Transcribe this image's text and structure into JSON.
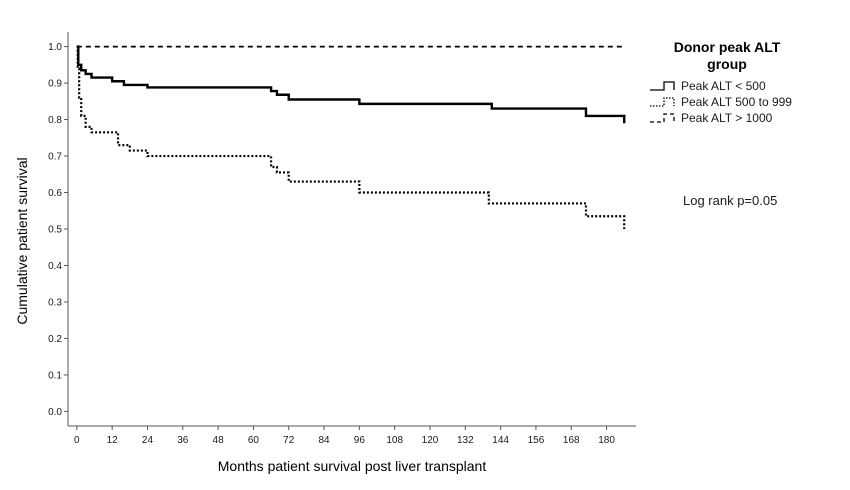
{
  "chart_data": {
    "type": "line",
    "title": "",
    "xlabel": "Months patient survival post liver transplant",
    "ylabel": "Cumulative patient survival",
    "xlim": [
      -3,
      190
    ],
    "ylim": [
      -0.04,
      1.04
    ],
    "x_ticks": [
      0,
      12,
      24,
      36,
      48,
      60,
      72,
      84,
      96,
      108,
      120,
      132,
      144,
      156,
      168,
      180
    ],
    "y_ticks": [
      0.0,
      0.1,
      0.2,
      0.3,
      0.4,
      0.5,
      0.6,
      0.7,
      0.8,
      0.9,
      1.0
    ],
    "grid": false,
    "legend": {
      "title": "Donor peak ALT group",
      "title_lines": [
        "Donor peak ALT",
        "group"
      ],
      "position": "right"
    },
    "annotation": "Log rank p=0.05",
    "series": [
      {
        "name": "Peak ALT < 500",
        "style": "solid",
        "color": "#000000",
        "points": [
          [
            0,
            1.0
          ],
          [
            0.5,
            0.95
          ],
          [
            1.5,
            0.935
          ],
          [
            3,
            0.925
          ],
          [
            5,
            0.915
          ],
          [
            12,
            0.905
          ],
          [
            16,
            0.895
          ],
          [
            24,
            0.888
          ],
          [
            66,
            0.878
          ],
          [
            68,
            0.868
          ],
          [
            72,
            0.855
          ],
          [
            96,
            0.843
          ],
          [
            141,
            0.83
          ],
          [
            173,
            0.81
          ],
          [
            186,
            0.79
          ]
        ]
      },
      {
        "name": "Peak ALT 500 to 999",
        "style": "dotted",
        "color": "#000000",
        "points": [
          [
            0,
            1.0
          ],
          [
            0.3,
            0.94
          ],
          [
            0.8,
            0.86
          ],
          [
            1.5,
            0.81
          ],
          [
            3,
            0.78
          ],
          [
            5,
            0.765
          ],
          [
            14,
            0.73
          ],
          [
            18,
            0.715
          ],
          [
            24,
            0.7
          ],
          [
            66,
            0.67
          ],
          [
            68,
            0.655
          ],
          [
            72,
            0.63
          ],
          [
            96,
            0.6
          ],
          [
            140,
            0.57
          ],
          [
            173,
            0.535
          ],
          [
            186,
            0.5
          ]
        ]
      },
      {
        "name": "Peak ALT > 1000",
        "style": "dashed",
        "color": "#000000",
        "points": [
          [
            0,
            1.0
          ],
          [
            186,
            1.0
          ]
        ]
      }
    ]
  }
}
